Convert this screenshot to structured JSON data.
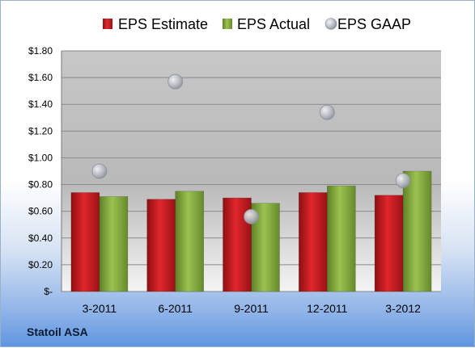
{
  "company_name": "Statoil ASA",
  "colors": {
    "estimate": "#c8161d",
    "actual": "#8cb040",
    "gaap": "#b8bcc4"
  },
  "chart_data": {
    "type": "bar",
    "categories": [
      "3-2011",
      "6-2011",
      "9-2011",
      "12-2011",
      "3-2012"
    ],
    "series": [
      {
        "name": "EPS Estimate",
        "kind": "bar",
        "values": [
          0.74,
          0.69,
          0.7,
          0.74,
          0.72
        ]
      },
      {
        "name": "EPS Actual",
        "kind": "bar",
        "values": [
          0.71,
          0.75,
          0.66,
          0.79,
          0.9
        ]
      },
      {
        "name": "EPS GAAP",
        "kind": "scatter",
        "values": [
          0.9,
          1.57,
          0.56,
          1.34,
          0.83
        ]
      }
    ],
    "ylim": [
      0,
      1.8
    ],
    "yticks": [
      0,
      0.2,
      0.4,
      0.6,
      0.8,
      1.0,
      1.2,
      1.4,
      1.6,
      1.8
    ],
    "ytick_labels": [
      "$-",
      "$0.20",
      "$0.40",
      "$0.60",
      "$0.80",
      "$1.00",
      "$1.20",
      "$1.40",
      "$1.60",
      "$1.80"
    ],
    "grid": true,
    "legend_position": "top"
  }
}
